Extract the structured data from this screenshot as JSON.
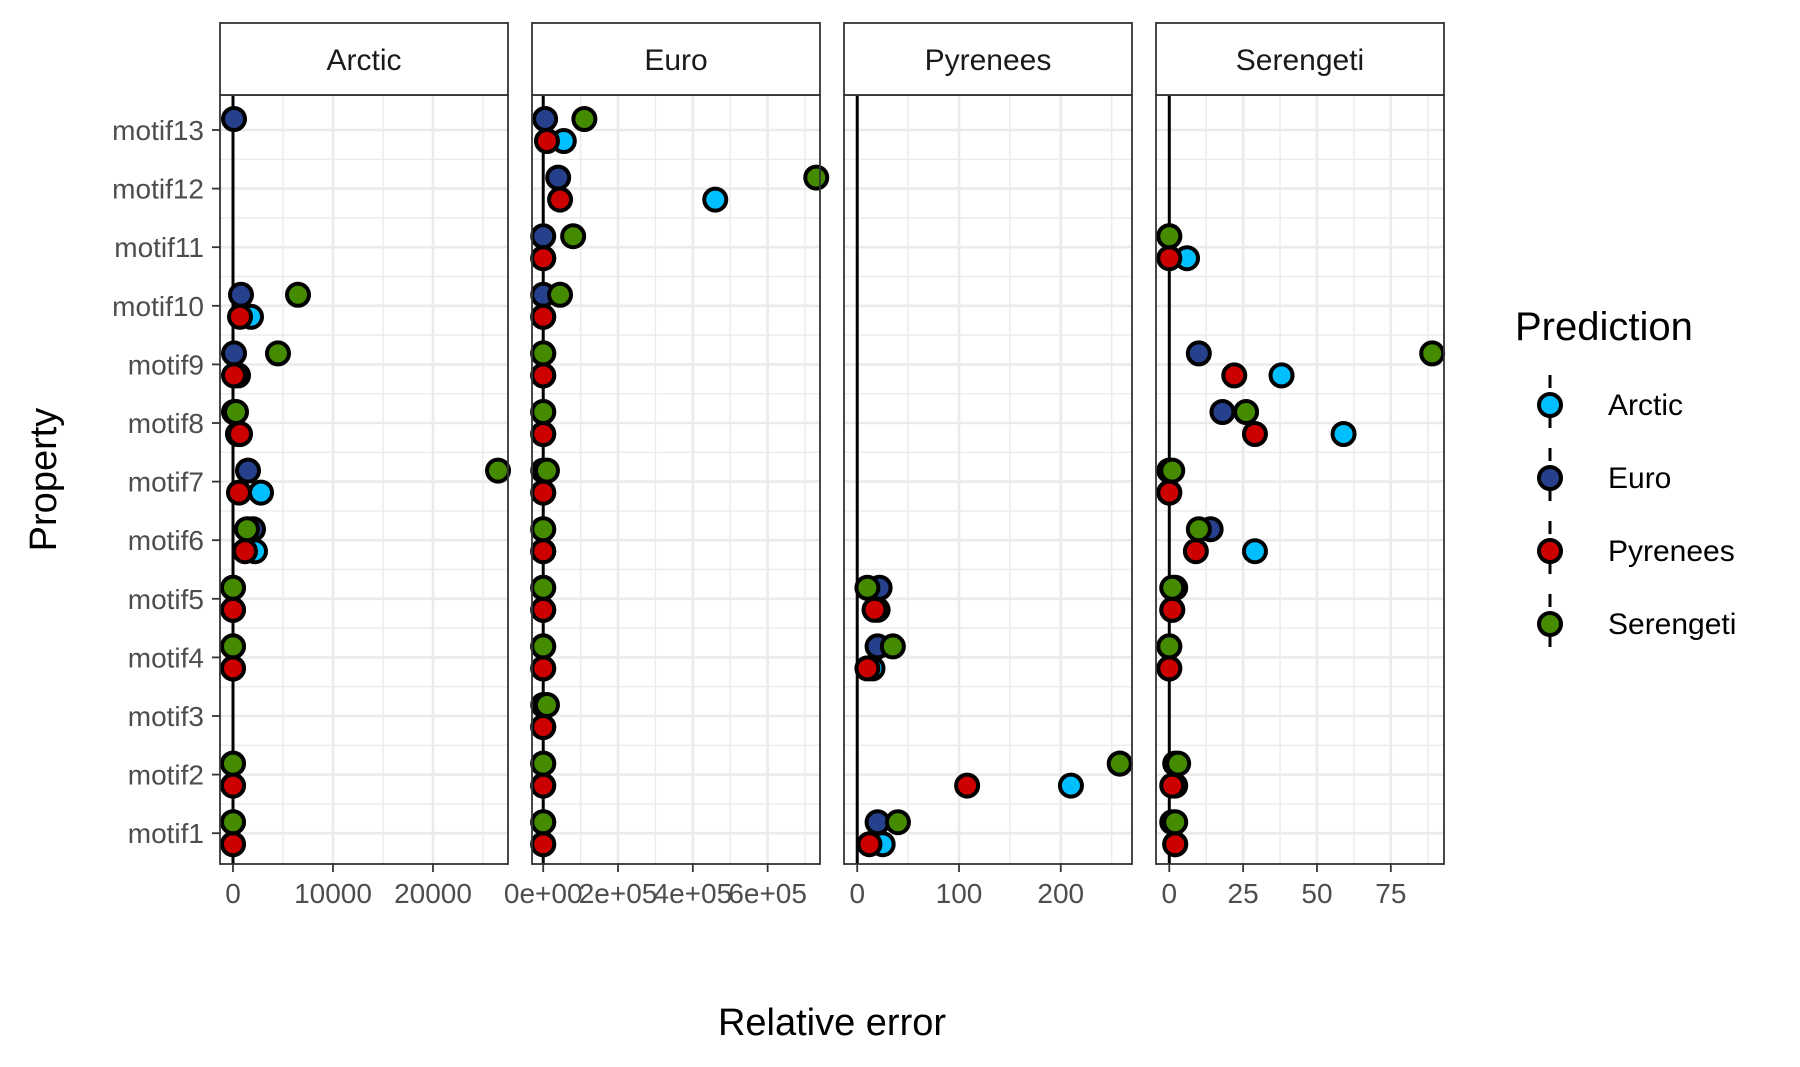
{
  "chart_data": {
    "type": "scatter",
    "xlabel": "Relative error",
    "ylabel": "Property",
    "categories": [
      "motif1",
      "motif2",
      "motif3",
      "motif4",
      "motif5",
      "motif6",
      "motif7",
      "motif8",
      "motif9",
      "motif10",
      "motif11",
      "motif12",
      "motif13"
    ],
    "legend": {
      "title": "Prediction",
      "placement": "right",
      "entries": [
        {
          "name": "Arctic",
          "color": "#00BFFF"
        },
        {
          "name": "Euro",
          "color": "#27408B"
        },
        {
          "name": "Pyrenees",
          "color": "#CD0000"
        },
        {
          "name": "Serengeti",
          "color": "#458B00"
        }
      ]
    },
    "facets": [
      {
        "title": "Arctic",
        "xlim": [
          -1300,
          27500
        ],
        "xticks": [
          0,
          10000,
          20000
        ],
        "xtick_labels": [
          "0",
          "10000",
          "20000"
        ],
        "points": {
          "Arctic": [
            [
              1,
              0
            ],
            [
              2,
              0
            ],
            [
              4,
              0
            ],
            [
              5,
              0
            ],
            [
              6,
              2200
            ],
            [
              7,
              2800
            ],
            [
              8,
              500
            ],
            [
              9,
              500
            ],
            [
              10,
              1800
            ]
          ],
          "Euro": [
            [
              1,
              0
            ],
            [
              2,
              0
            ],
            [
              4,
              0
            ],
            [
              5,
              0
            ],
            [
              6,
              2000
            ],
            [
              7,
              1500
            ],
            [
              8,
              100
            ],
            [
              9,
              100
            ],
            [
              10,
              800
            ],
            [
              13,
              100
            ]
          ],
          "Pyrenees": [
            [
              1,
              0
            ],
            [
              2,
              0
            ],
            [
              4,
              0
            ],
            [
              5,
              0
            ],
            [
              6,
              1200
            ],
            [
              7,
              600
            ],
            [
              8,
              700
            ],
            [
              9,
              100
            ],
            [
              10,
              700
            ]
          ],
          "Serengeti": [
            [
              1,
              0
            ],
            [
              2,
              0
            ],
            [
              4,
              0
            ],
            [
              5,
              0
            ],
            [
              6,
              1400
            ],
            [
              7,
              26500
            ],
            [
              8,
              300
            ],
            [
              9,
              4500
            ],
            [
              10,
              6500
            ]
          ]
        }
      },
      {
        "title": "Euro",
        "xlim": [
          -30000,
          740000
        ],
        "xticks": [
          0,
          200000,
          400000,
          600000
        ],
        "xtick_labels": [
          "0e+00",
          "2e+05",
          "4e+05",
          "6e+05"
        ],
        "points": {
          "Arctic": [
            [
              1,
              0
            ],
            [
              2,
              0
            ],
            [
              3,
              0
            ],
            [
              4,
              0
            ],
            [
              5,
              0
            ],
            [
              6,
              0
            ],
            [
              7,
              0
            ],
            [
              8,
              0
            ],
            [
              9,
              0
            ],
            [
              10,
              0
            ],
            [
              11,
              0
            ],
            [
              12,
              460000
            ],
            [
              13,
              55000
            ]
          ],
          "Euro": [
            [
              1,
              0
            ],
            [
              2,
              0
            ],
            [
              3,
              0
            ],
            [
              4,
              0
            ],
            [
              5,
              0
            ],
            [
              6,
              0
            ],
            [
              7,
              0
            ],
            [
              8,
              0
            ],
            [
              9,
              0
            ],
            [
              10,
              0
            ],
            [
              11,
              0
            ],
            [
              12,
              40000
            ],
            [
              13,
              5000
            ]
          ],
          "Pyrenees": [
            [
              1,
              0
            ],
            [
              2,
              0
            ],
            [
              3,
              0
            ],
            [
              4,
              0
            ],
            [
              5,
              0
            ],
            [
              6,
              0
            ],
            [
              7,
              0
            ],
            [
              8,
              0
            ],
            [
              9,
              0
            ],
            [
              10,
              0
            ],
            [
              11,
              0
            ],
            [
              12,
              45000
            ],
            [
              13,
              10000
            ]
          ],
          "Serengeti": [
            [
              1,
              0
            ],
            [
              2,
              0
            ],
            [
              3,
              10000
            ],
            [
              4,
              0
            ],
            [
              5,
              0
            ],
            [
              6,
              0
            ],
            [
              7,
              10000
            ],
            [
              8,
              0
            ],
            [
              9,
              0
            ],
            [
              10,
              45000
            ],
            [
              11,
              80000
            ],
            [
              12,
              730000
            ],
            [
              13,
              110000
            ]
          ]
        }
      },
      {
        "title": "Pyrenees",
        "xlim": [
          -13,
          270
        ],
        "xticks": [
          0,
          100,
          200
        ],
        "xtick_labels": [
          "0",
          "100",
          "200"
        ],
        "points": {
          "Arctic": [
            [
              1,
              25
            ],
            [
              2,
              210
            ],
            [
              4,
              15
            ],
            [
              5,
              20
            ]
          ],
          "Euro": [
            [
              1,
              20
            ],
            [
              2,
              258
            ],
            [
              4,
              20
            ],
            [
              5,
              22
            ]
          ],
          "Pyrenees": [
            [
              1,
              12
            ],
            [
              2,
              108
            ],
            [
              4,
              10
            ],
            [
              5,
              17
            ]
          ],
          "Serengeti": [
            [
              1,
              40
            ],
            [
              2,
              258
            ],
            [
              4,
              35
            ],
            [
              5,
              10
            ]
          ]
        }
      },
      {
        "title": "Serengeti",
        "xlim": [
          -4.5,
          93
        ],
        "xticks": [
          0,
          25,
          50,
          75
        ],
        "xtick_labels": [
          "0",
          "25",
          "50",
          "75"
        ],
        "points": {
          "Arctic": [
            [
              1,
              2
            ],
            [
              2,
              2
            ],
            [
              4,
              0
            ],
            [
              5,
              1
            ],
            [
              6,
              29
            ],
            [
              7,
              0
            ],
            [
              8,
              59
            ],
            [
              9,
              38
            ],
            [
              11,
              6
            ]
          ],
          "Euro": [
            [
              1,
              1
            ],
            [
              2,
              2
            ],
            [
              4,
              0
            ],
            [
              5,
              2
            ],
            [
              6,
              14
            ],
            [
              7,
              0
            ],
            [
              8,
              18
            ],
            [
              9,
              10
            ],
            [
              11,
              0
            ]
          ],
          "Pyrenees": [
            [
              1,
              2
            ],
            [
              2,
              1
            ],
            [
              4,
              0
            ],
            [
              5,
              1
            ],
            [
              6,
              9
            ],
            [
              7,
              0
            ],
            [
              8,
              29
            ],
            [
              9,
              22
            ],
            [
              11,
              0
            ]
          ],
          "Serengeti": [
            [
              1,
              2
            ],
            [
              2,
              3
            ],
            [
              4,
              0
            ],
            [
              5,
              1
            ],
            [
              6,
              10
            ],
            [
              7,
              1
            ],
            [
              8,
              26
            ],
            [
              9,
              89
            ],
            [
              11,
              0
            ]
          ]
        }
      }
    ]
  }
}
